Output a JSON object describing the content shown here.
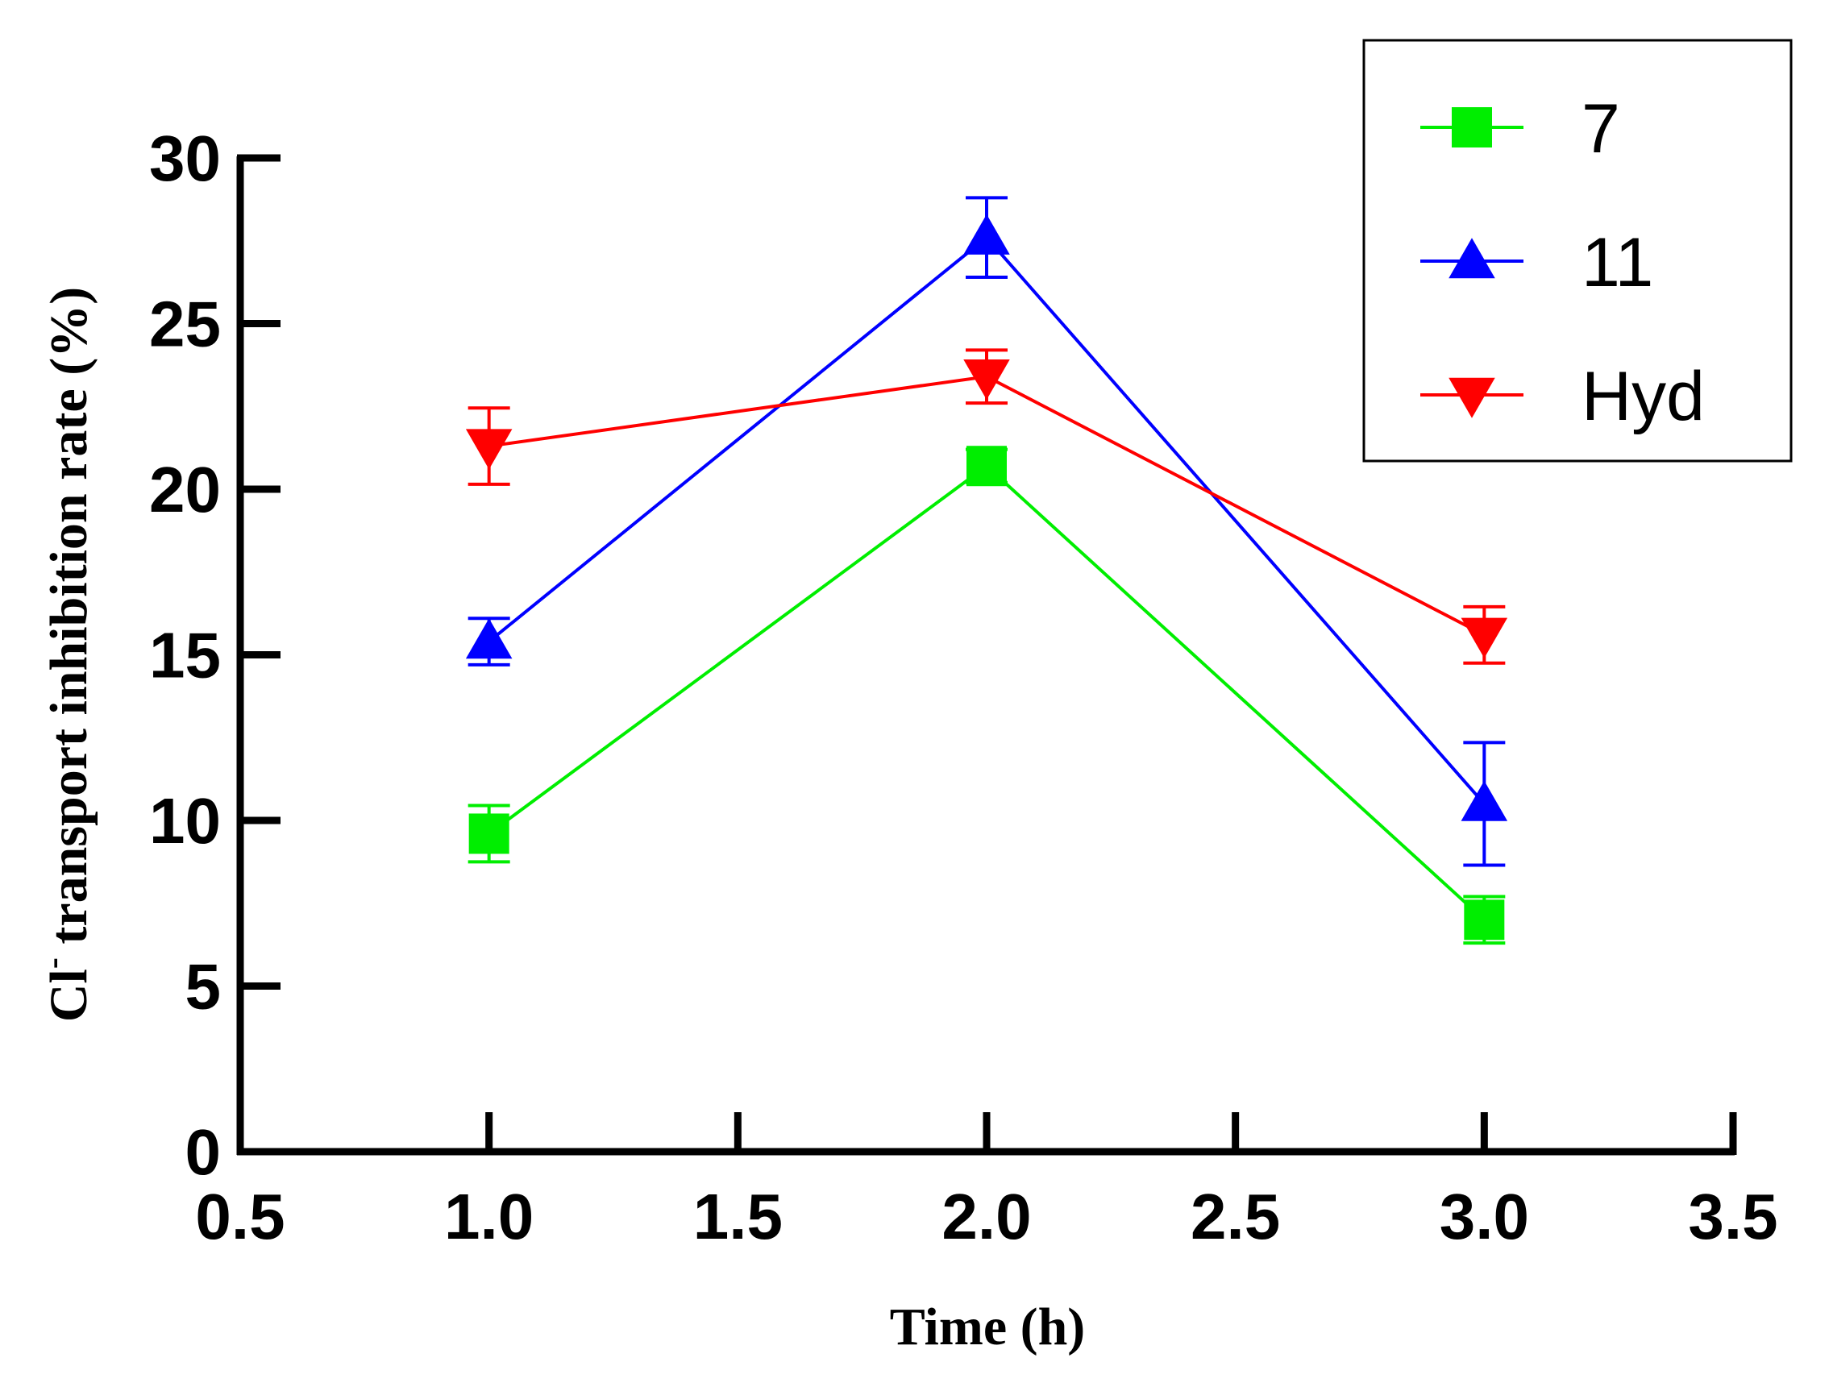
{
  "chart_data": {
    "type": "line",
    "xlabel": "Time (h)",
    "ylabel_prefix": "Cl",
    "ylabel_superscript": "-",
    "ylabel_suffix": " transport inhibition rate (%)",
    "xlim": [
      0.5,
      3.5
    ],
    "ylim": [
      0,
      30
    ],
    "x_ticks": [
      "0.5",
      "1.0",
      "1.5",
      "2.0",
      "2.5",
      "3.0",
      "3.5"
    ],
    "y_ticks": [
      "0",
      "5",
      "10",
      "15",
      "20",
      "25",
      "30"
    ],
    "x": [
      1.0,
      2.0,
      3.0
    ],
    "grid": false,
    "legend_position": "top-right",
    "series": [
      {
        "name": "7",
        "color": "#00ee00",
        "marker": "square",
        "values": [
          9.6,
          20.7,
          7.0
        ],
        "errors": [
          0.85,
          0.5,
          0.7
        ]
      },
      {
        "name": "11",
        "color": "#0000ff",
        "marker": "triangle-up",
        "values": [
          15.4,
          27.6,
          10.5
        ],
        "errors": [
          0.7,
          1.2,
          1.85
        ]
      },
      {
        "name": "Hyd",
        "color": "#ff0000",
        "marker": "triangle-down",
        "values": [
          21.3,
          23.4,
          15.6
        ],
        "errors": [
          1.15,
          0.8,
          0.85
        ]
      }
    ]
  }
}
